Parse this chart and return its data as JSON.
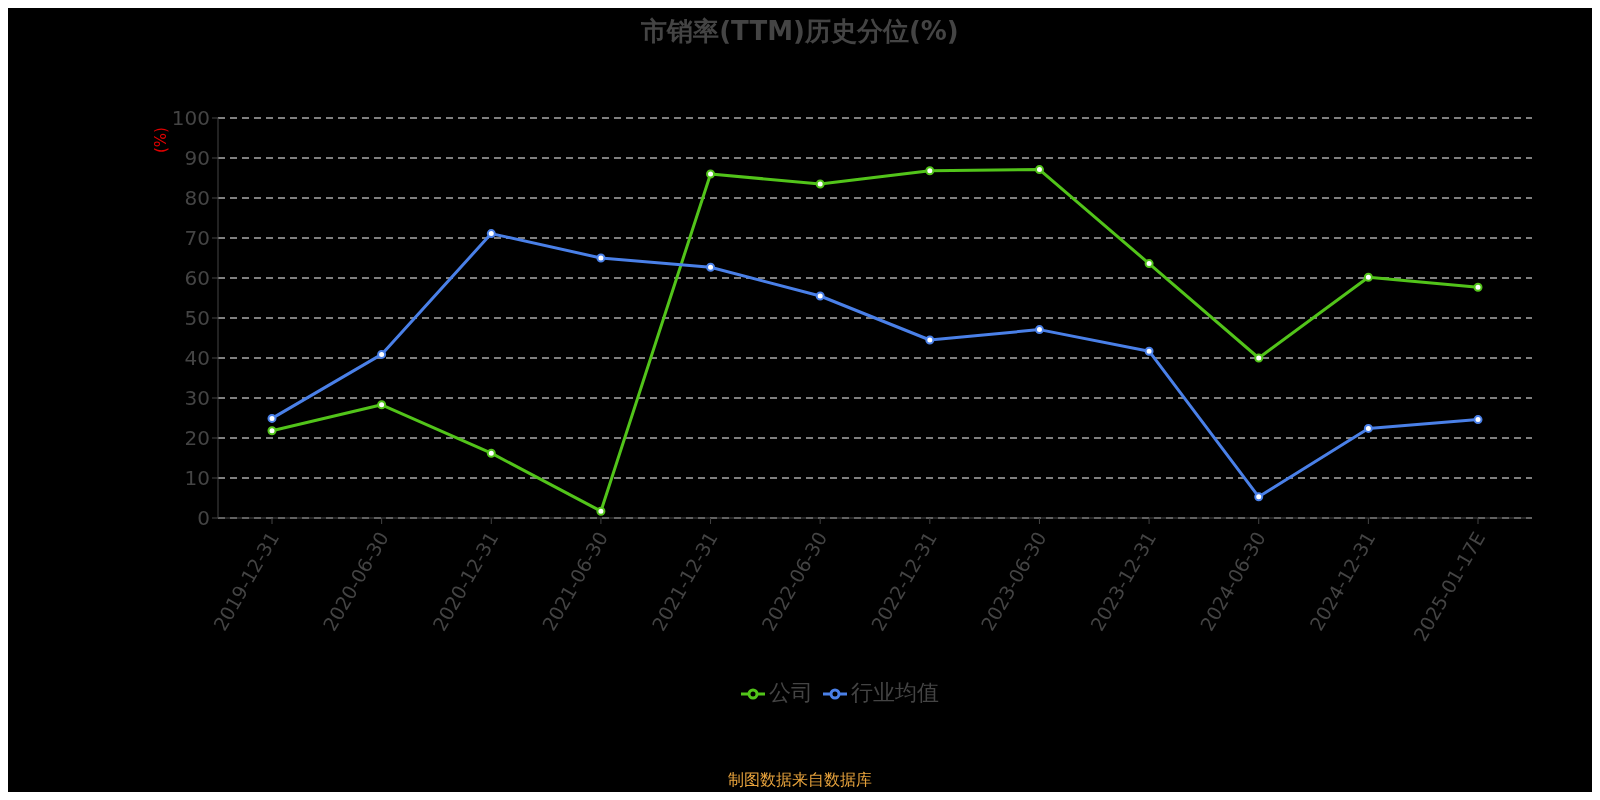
{
  "chart_data": {
    "type": "line",
    "title": "市销率(TTM)历史分位(%)",
    "ylabel": "(%)",
    "categories": [
      "2019-12-31",
      "2020-06-30",
      "2020-12-31",
      "2021-06-30",
      "2021-12-31",
      "2022-06-30",
      "2022-12-31",
      "2023-06-30",
      "2023-12-31",
      "2024-06-30",
      "2024-12-31",
      "2025-01-17E"
    ],
    "series": [
      {
        "name": "公司",
        "color": "#52c41a",
        "values": [
          21.8,
          28.3,
          16.2,
          1.7,
          86.0,
          83.5,
          86.8,
          87.1,
          63.6,
          40.0,
          60.2,
          57.7
        ]
      },
      {
        "name": "行业均值",
        "color": "#4a80e8",
        "values": [
          24.9,
          40.9,
          71.1,
          65.0,
          62.7,
          55.5,
          44.5,
          47.1,
          41.7,
          5.3,
          22.4,
          24.6
        ]
      }
    ],
    "ylim": [
      0,
      100
    ],
    "yticks": [
      0,
      10,
      20,
      30,
      40,
      50,
      60,
      70,
      80,
      90,
      100
    ],
    "grid": "y",
    "legend": "bottom",
    "marker": "circle",
    "line_style": "solid",
    "annotations": [
      "制图数据来自数据库"
    ]
  }
}
